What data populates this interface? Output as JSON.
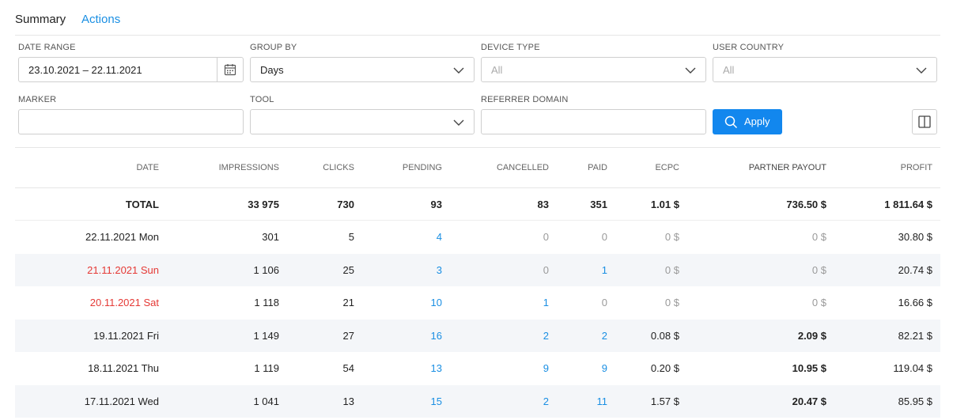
{
  "tabs": {
    "summary": "Summary",
    "actions": "Actions"
  },
  "filters": {
    "date_range": {
      "label": "DATE RANGE",
      "value": "23.10.2021 – 22.11.2021"
    },
    "group_by": {
      "label": "GROUP BY",
      "value": "Days"
    },
    "device_type": {
      "label": "DEVICE TYPE",
      "placeholder": "All"
    },
    "user_country": {
      "label": "USER COUNTRY",
      "placeholder": "All"
    },
    "marker": {
      "label": "MARKER",
      "value": ""
    },
    "tool": {
      "label": "TOOL",
      "value": ""
    },
    "referrer_domain": {
      "label": "REFERRER DOMAIN",
      "value": ""
    },
    "apply_label": "Apply"
  },
  "table": {
    "headers": {
      "date": "DATE",
      "impressions": "IMPRESSIONS",
      "clicks": "CLICKS",
      "pending": "PENDING",
      "cancelled": "CANCELLED",
      "paid": "PAID",
      "ecpc": "ECPC",
      "partner_payout": "PARTNER PAYOUT",
      "profit": "PROFIT"
    },
    "total": {
      "date": "TOTAL",
      "impressions": "33 975",
      "clicks": "730",
      "pending": "93",
      "cancelled": "83",
      "paid": "351",
      "ecpc": "1.01 $",
      "partner_payout": "736.50 $",
      "profit": "1 811.64 $"
    },
    "rows": [
      {
        "date": "22.11.2021 Mon",
        "impressions": "301",
        "clicks": "5",
        "pending": "4",
        "cancelled": "0",
        "paid": "0",
        "ecpc": "0 $",
        "partner_payout": "0 $",
        "profit": "30.80 $"
      },
      {
        "date": "21.11.2021 Sun",
        "impressions": "1 106",
        "clicks": "25",
        "pending": "3",
        "cancelled": "0",
        "paid": "1",
        "ecpc": "0 $",
        "partner_payout": "0 $",
        "profit": "20.74 $"
      },
      {
        "date": "20.11.2021 Sat",
        "impressions": "1 118",
        "clicks": "21",
        "pending": "10",
        "cancelled": "1",
        "paid": "0",
        "ecpc": "0 $",
        "partner_payout": "0 $",
        "profit": "16.66 $"
      },
      {
        "date": "19.11.2021 Fri",
        "impressions": "1 149",
        "clicks": "27",
        "pending": "16",
        "cancelled": "2",
        "paid": "2",
        "ecpc": "0.08 $",
        "partner_payout": "2.09 $",
        "profit": "82.21 $"
      },
      {
        "date": "18.11.2021 Thu",
        "impressions": "1 119",
        "clicks": "54",
        "pending": "13",
        "cancelled": "9",
        "paid": "9",
        "ecpc": "0.20 $",
        "partner_payout": "10.95 $",
        "profit": "119.04 $"
      },
      {
        "date": "17.11.2021 Wed",
        "impressions": "1 041",
        "clicks": "13",
        "pending": "15",
        "cancelled": "2",
        "paid": "11",
        "ecpc": "1.57 $",
        "partner_payout": "20.47 $",
        "profit": "85.95 $"
      }
    ]
  },
  "colors": {
    "accent": "#1287ee",
    "link": "#1a8fe3",
    "weekend": "#e53935",
    "muted": "#9a9a9a",
    "stripe": "#f4f6f9"
  }
}
